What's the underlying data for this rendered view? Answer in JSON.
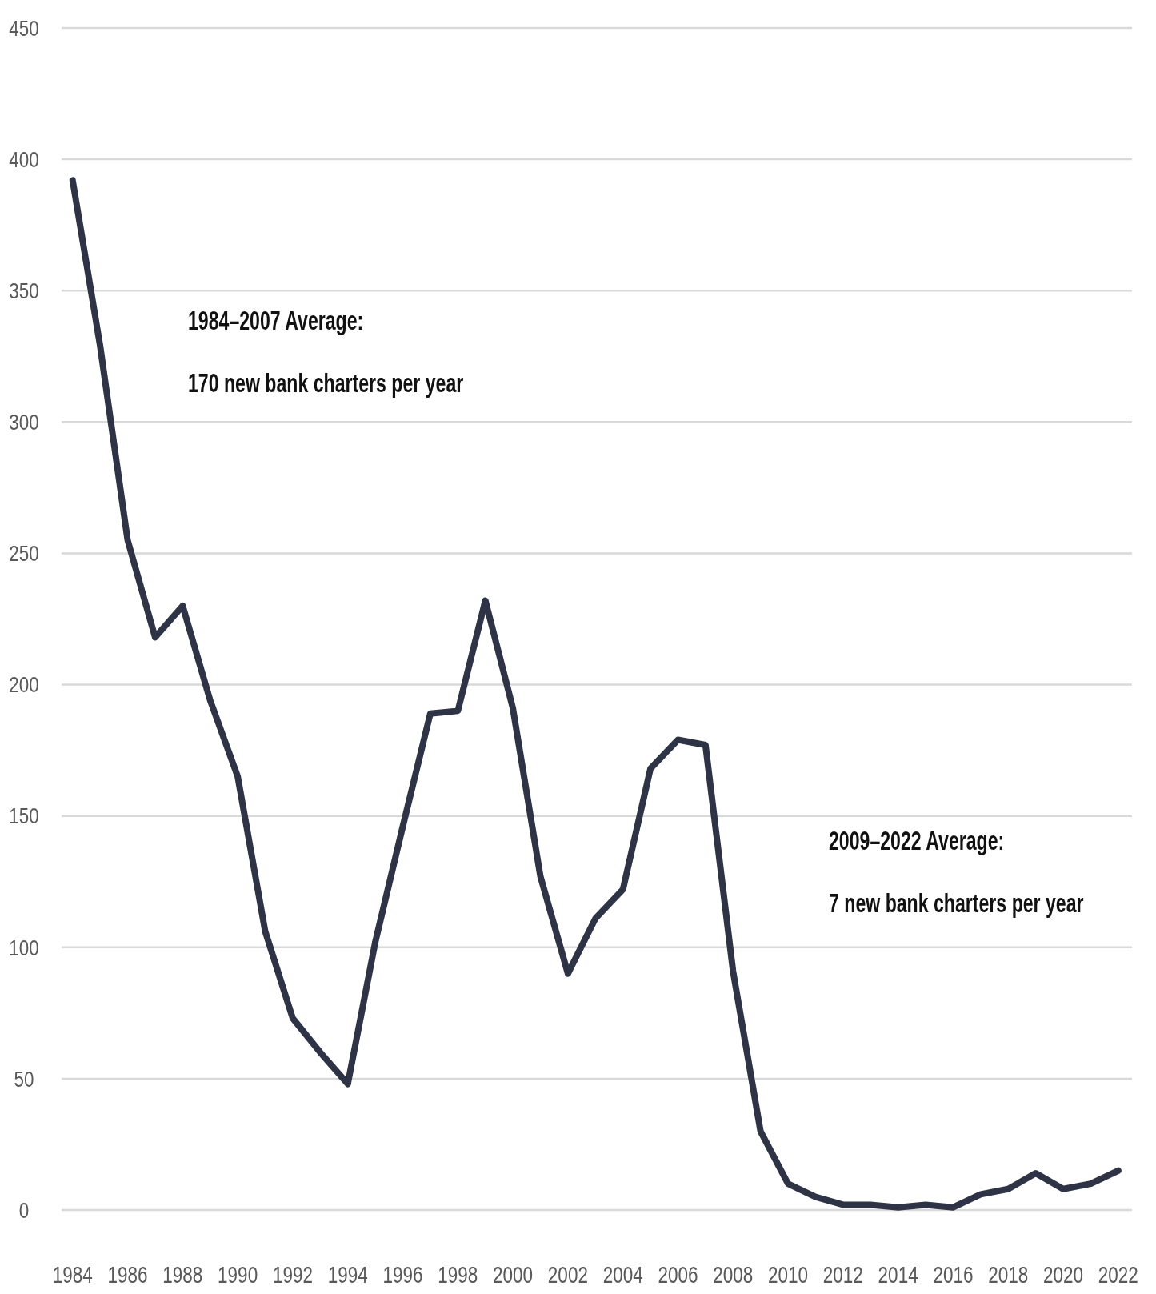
{
  "chart_data": {
    "type": "line",
    "x": [
      1984,
      1985,
      1986,
      1987,
      1988,
      1989,
      1990,
      1991,
      1992,
      1993,
      1994,
      1995,
      1996,
      1997,
      1998,
      1999,
      2000,
      2001,
      2002,
      2003,
      2004,
      2005,
      2006,
      2007,
      2008,
      2009,
      2010,
      2011,
      2012,
      2013,
      2014,
      2015,
      2016,
      2017,
      2018,
      2019,
      2020,
      2021,
      2022
    ],
    "series": [
      {
        "color": "#2e3445",
        "values": [
          392,
          329,
          255,
          218,
          230,
          194,
          165,
          106,
          73,
          60,
          48,
          102,
          146,
          189,
          190,
          232,
          191,
          127,
          90,
          111,
          122,
          168,
          179,
          177,
          91,
          30,
          10,
          5,
          2,
          2,
          1,
          2,
          1,
          6,
          8,
          14,
          8,
          10,
          15
        ]
      }
    ],
    "xlim": [
      1983.6,
      2022.5
    ],
    "xticks": [
      1984,
      1986,
      1988,
      1990,
      1992,
      1994,
      1996,
      1998,
      2000,
      2002,
      2004,
      2006,
      2008,
      2010,
      2012,
      2014,
      2016,
      2018,
      2020,
      2022
    ],
    "ylim": [
      0,
      450
    ],
    "yticks": [
      0,
      50,
      100,
      150,
      200,
      250,
      300,
      350,
      400,
      450
    ],
    "grid": "y",
    "marker": "none",
    "line_style": "solid",
    "annotations": [
      "1984–2007 Average:\n170 new bank charters per year",
      "2009–2022 Average:\n7 new bank charters per year"
    ]
  }
}
